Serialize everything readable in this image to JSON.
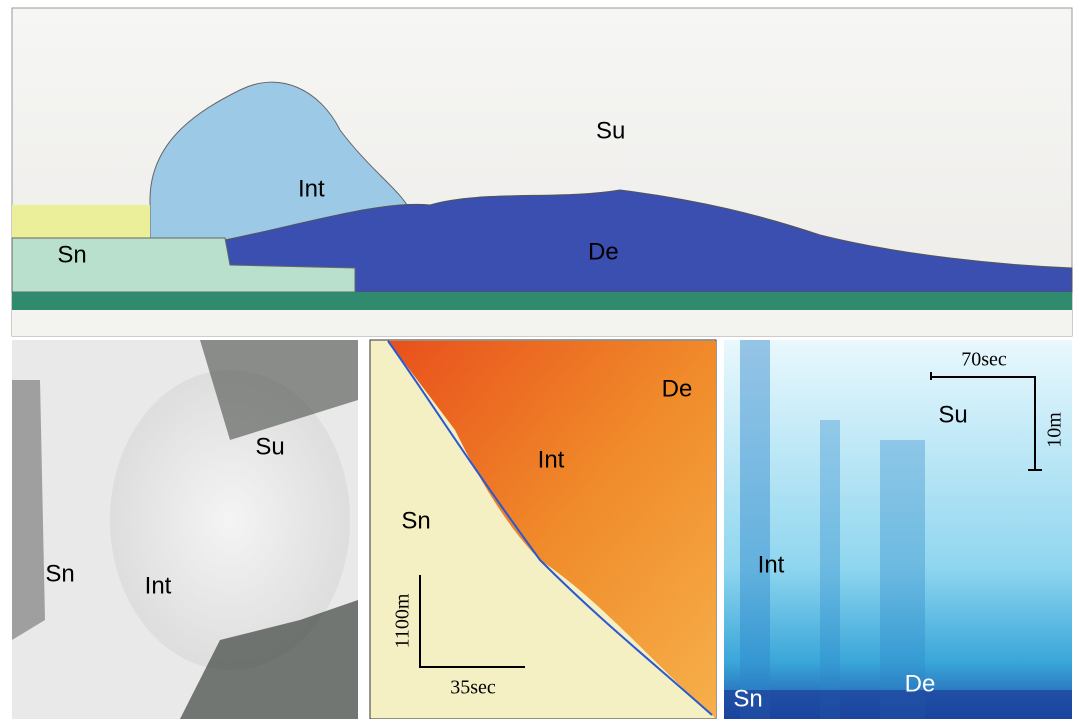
{
  "panels": [
    {
      "labels": [
        "Su",
        "Int",
        "De",
        "Sn"
      ]
    },
    {
      "labels": [
        "Su",
        "Sn",
        "Int"
      ]
    },
    {
      "labels": [
        "De",
        "Int",
        "Sn"
      ],
      "scale": {
        "distance": "1100m",
        "time": "35sec"
      }
    },
    {
      "labels": [
        "Su",
        "Int",
        "De",
        "Sn"
      ],
      "scale": {
        "time": "70sec",
        "distance": "10m"
      }
    }
  ]
}
